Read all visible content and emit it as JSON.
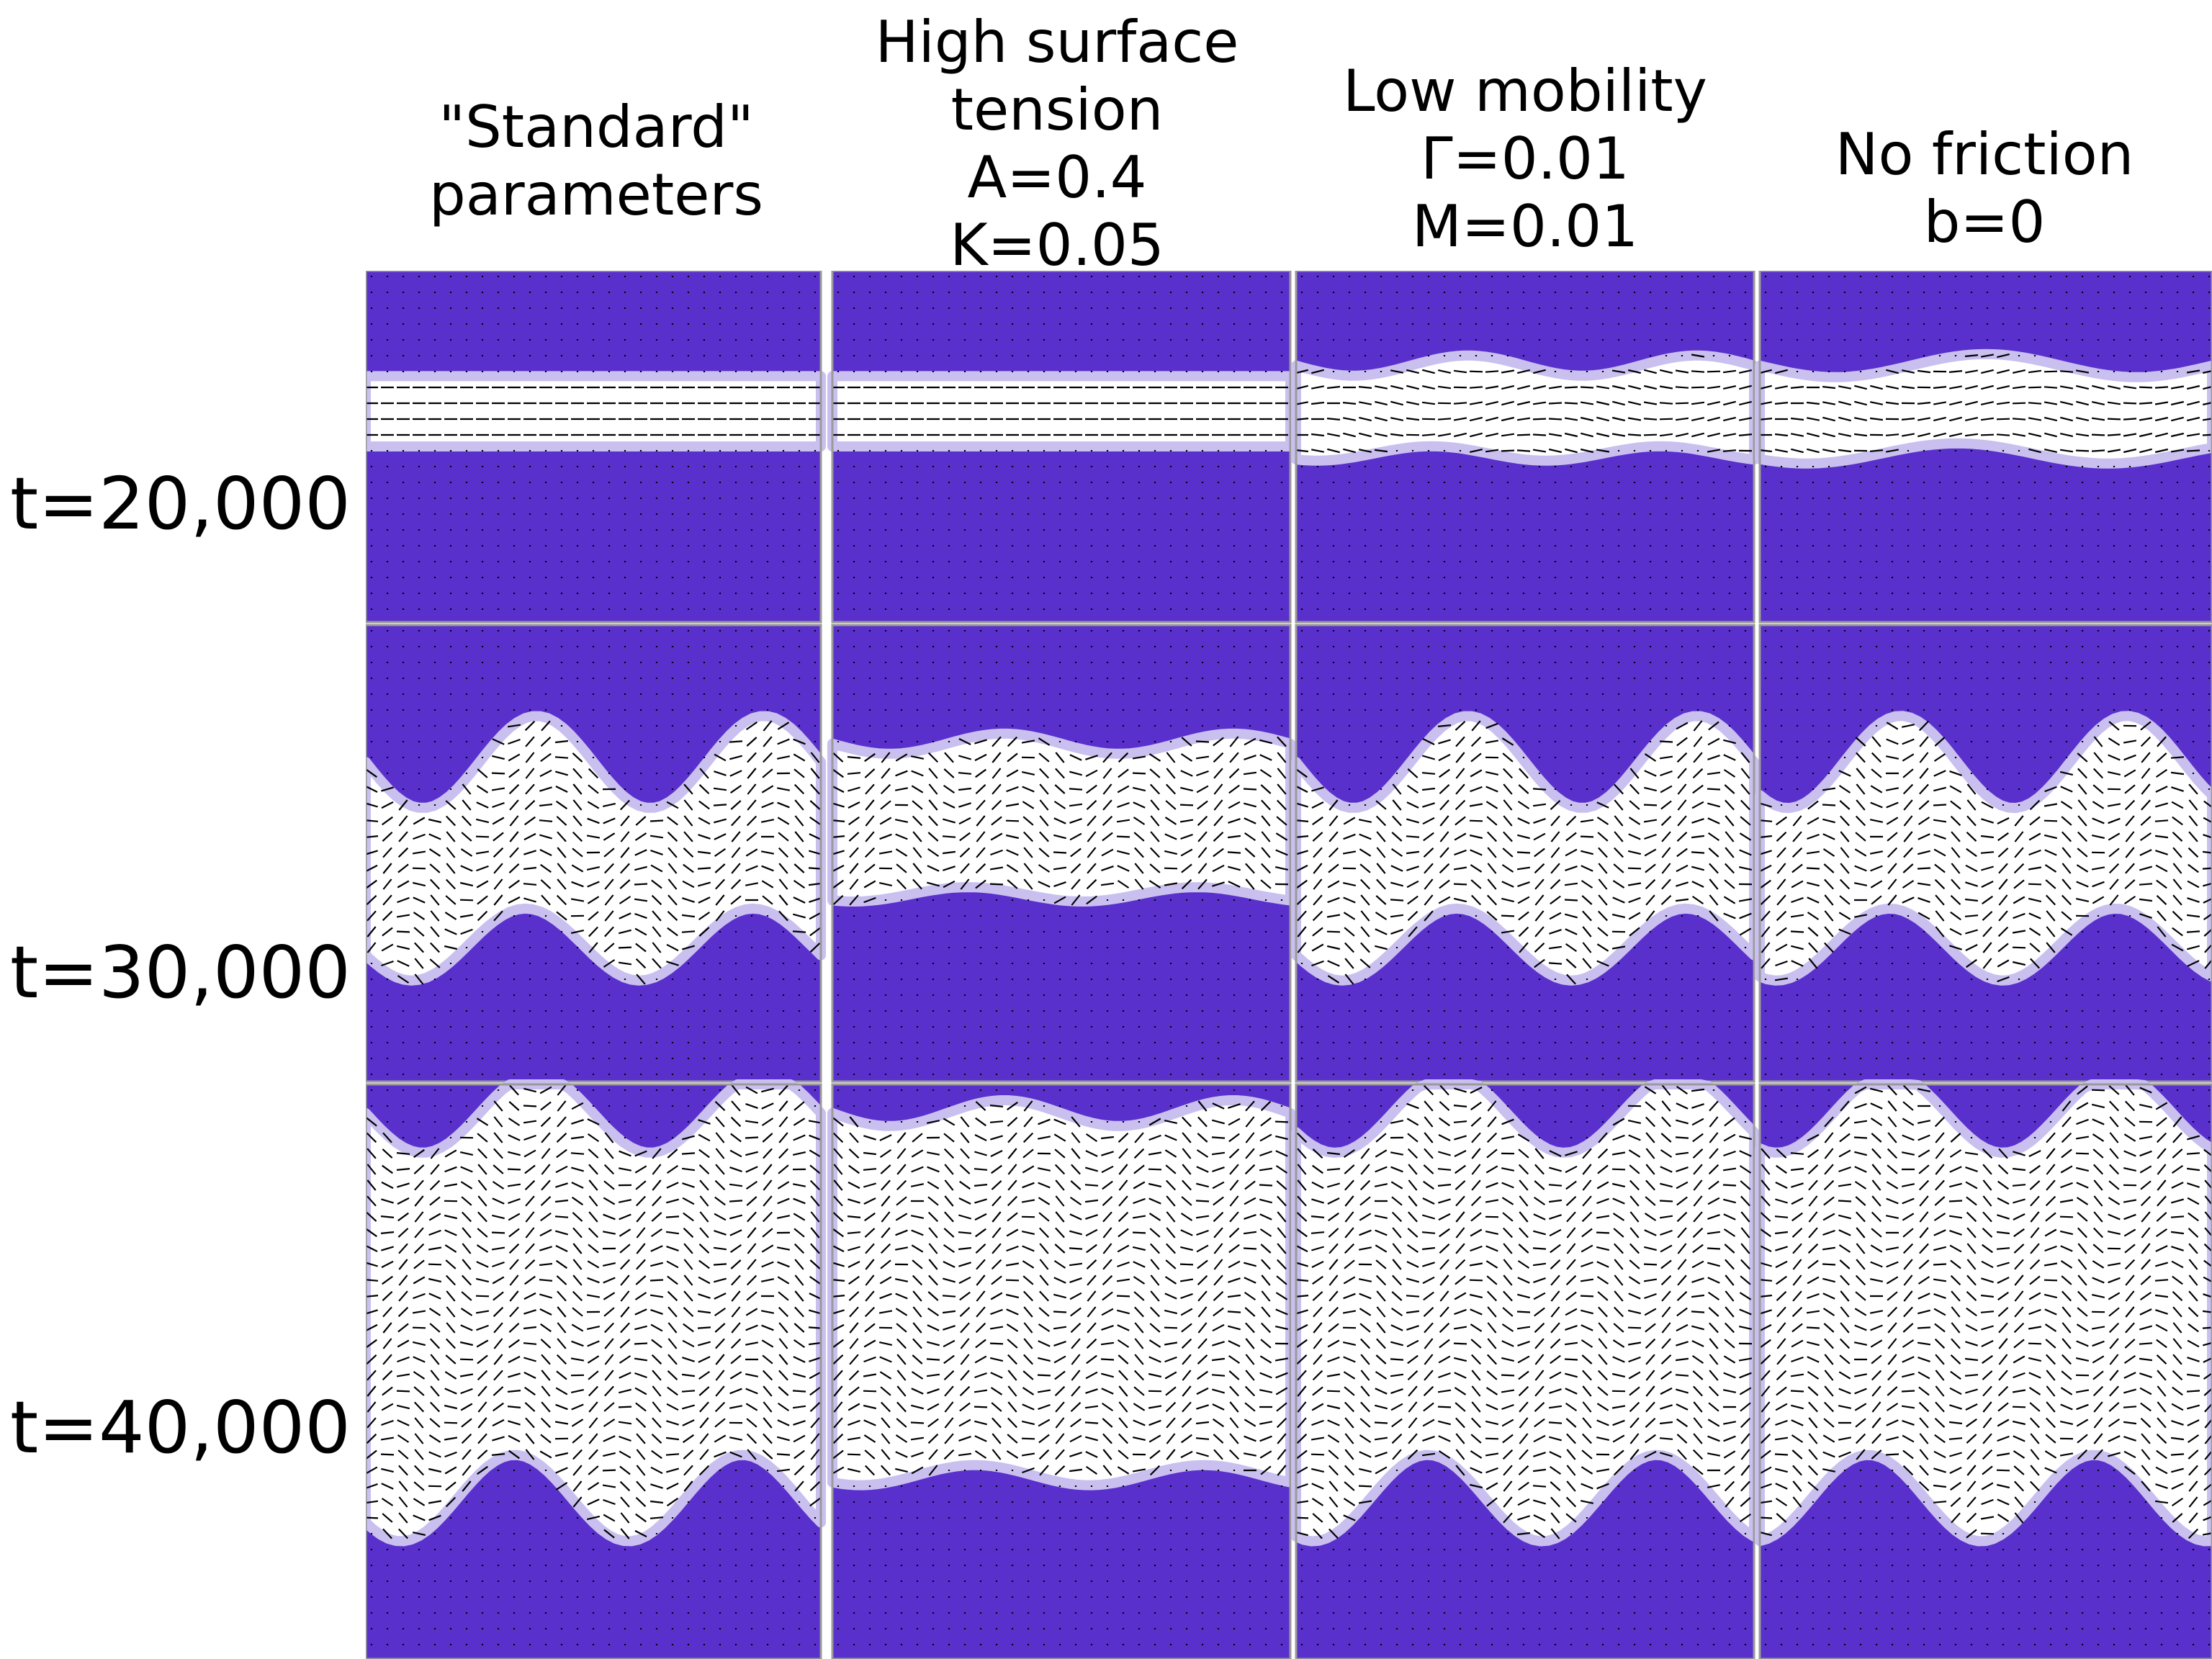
{
  "figure": {
    "columns": [
      {
        "id": "standard",
        "lines": [
          "\"Standard\"",
          "parameters"
        ]
      },
      {
        "id": "high-surface-tension",
        "lines": [
          "High surface",
          "tension",
          "A=0.4",
          "K=0.05"
        ]
      },
      {
        "id": "low-mobility",
        "lines": [
          "Low mobility",
          "Γ=0.01",
          "M=0.01"
        ]
      },
      {
        "id": "no-friction",
        "lines": [
          "No friction",
          "b=0"
        ]
      }
    ],
    "rows": [
      {
        "id": "t20000",
        "label": "t=20,000"
      },
      {
        "id": "t30000",
        "label": "t=30,000"
      },
      {
        "id": "t40000",
        "label": "t=40,000"
      }
    ],
    "colors": {
      "isotropic_phase": "#5a30cc",
      "nematic_phase": "#ffffff",
      "interface": "#c9c0ef",
      "director": "#000000",
      "panel_border": "#9a9a9a",
      "background": "#ffffff"
    },
    "icons": [
      "director-field-dashes"
    ]
  }
}
